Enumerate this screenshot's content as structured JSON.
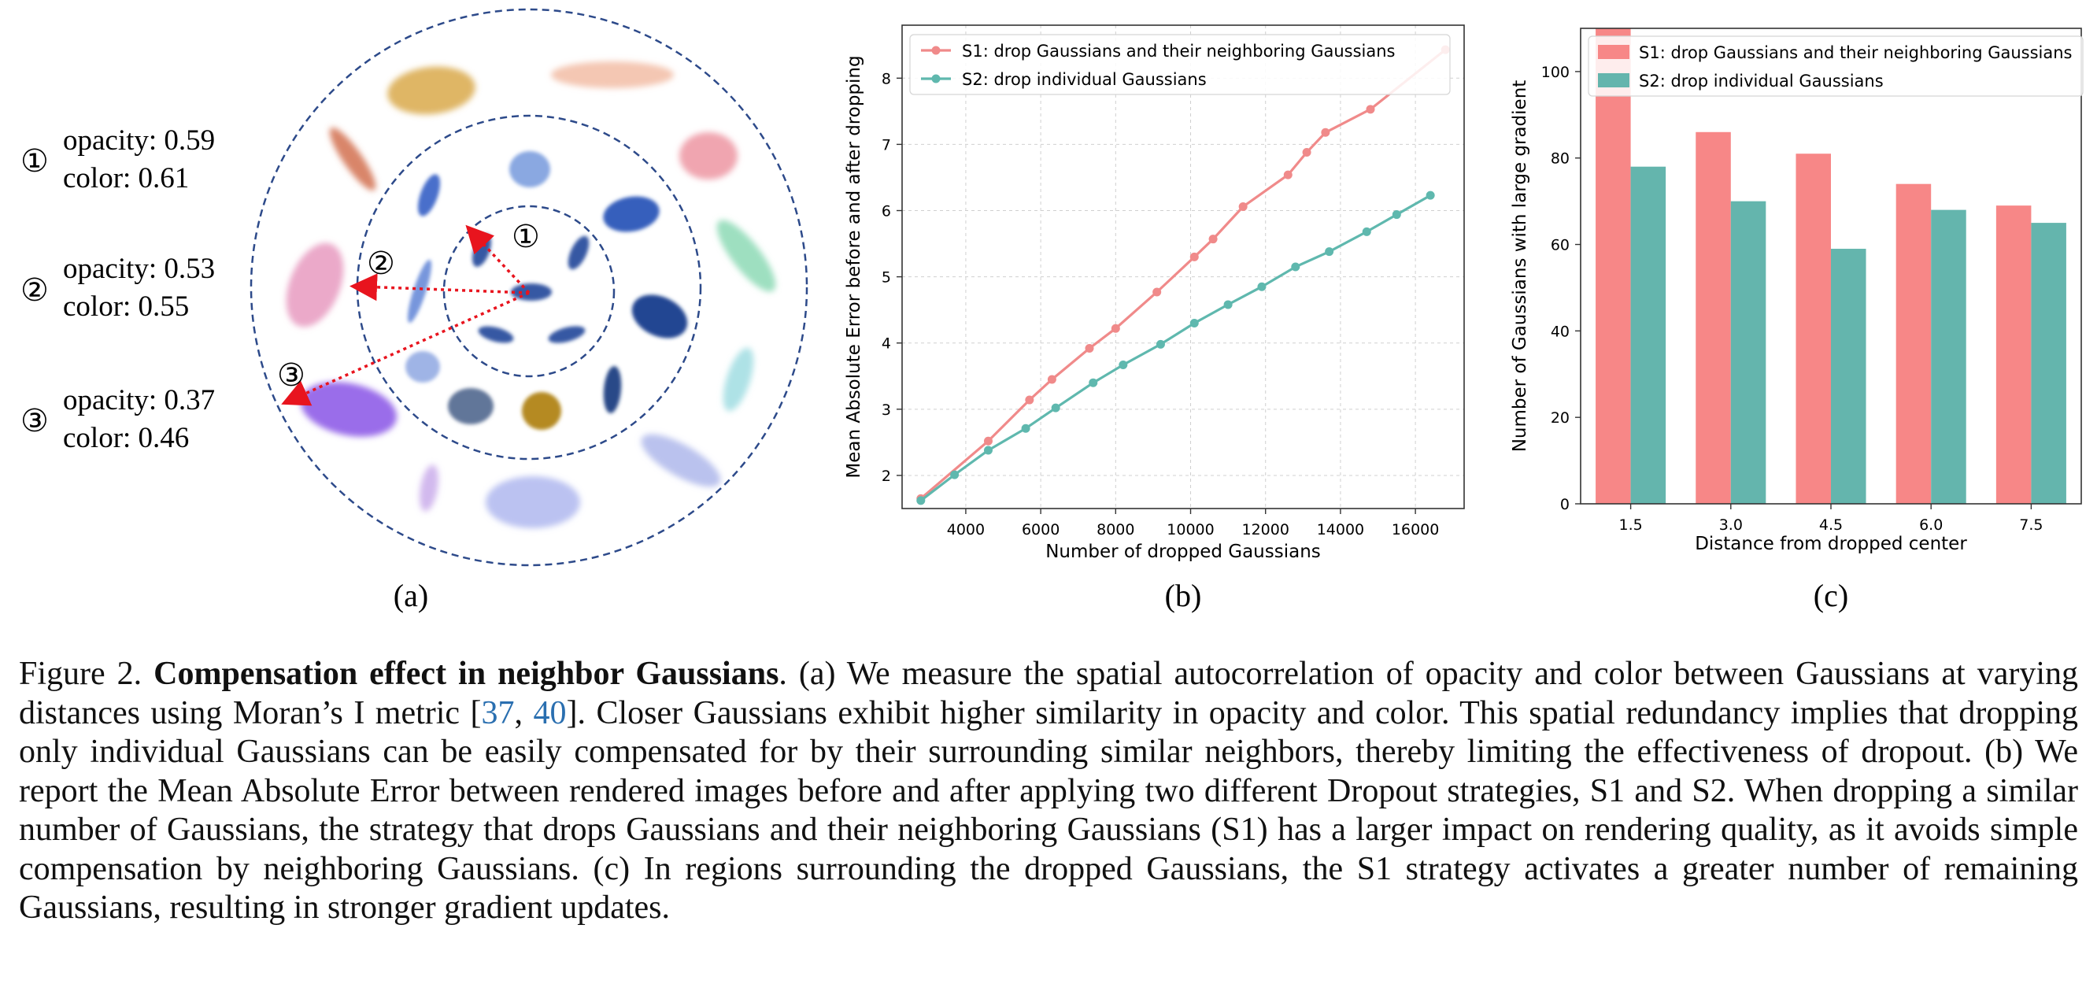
{
  "panel_a": {
    "label": "(a)",
    "annotations": [
      {
        "marker": "①",
        "opacity_text": "opacity: 0.59",
        "color_text": "color: 0.61"
      },
      {
        "marker": "②",
        "opacity_text": "opacity: 0.53",
        "color_text": "color: 0.55"
      },
      {
        "marker": "③",
        "opacity_text": "opacity: 0.37",
        "color_text": "color: 0.46"
      }
    ],
    "ring_markers": [
      "①",
      "②",
      "③"
    ]
  },
  "chart_data": [
    {
      "type": "line",
      "panel_label": "(b)",
      "xlabel": "Number of dropped Gaussians",
      "ylabel": "Mean Absolute Error before and after dropping",
      "xlim": [
        2300,
        17300
      ],
      "ylim": [
        1.5,
        8.8
      ],
      "xticks": [
        4000,
        6000,
        8000,
        10000,
        12000,
        14000,
        16000
      ],
      "yticks": [
        2,
        3,
        4,
        5,
        6,
        7,
        8
      ],
      "grid": true,
      "legend_position": "top-left",
      "series": [
        {
          "name": "S1: drop Gaussians and their neighboring Gaussians",
          "color": "#f08a8a",
          "x": [
            2800,
            4600,
            5700,
            6300,
            7300,
            8000,
            9100,
            10100,
            10600,
            11400,
            12600,
            13100,
            13600,
            14800,
            16800
          ],
          "y": [
            1.65,
            2.52,
            3.14,
            3.45,
            3.92,
            4.22,
            4.77,
            5.3,
            5.57,
            6.06,
            6.54,
            6.88,
            7.18,
            7.53,
            8.43
          ]
        },
        {
          "name": "S2: drop individual Gaussians",
          "color": "#5fb8ae",
          "x": [
            2800,
            3700,
            4600,
            5600,
            6400,
            7400,
            8200,
            9200,
            10100,
            11000,
            11900,
            12800,
            13700,
            14700,
            15500,
            16400
          ],
          "y": [
            1.62,
            2.01,
            2.38,
            2.71,
            3.02,
            3.4,
            3.67,
            3.98,
            4.3,
            4.58,
            4.85,
            5.15,
            5.38,
            5.68,
            5.94,
            6.23
          ]
        }
      ]
    },
    {
      "type": "bar",
      "panel_label": "(c)",
      "xlabel": "Distance from dropped center",
      "ylabel": "Number of Gaussians with large gradient",
      "categories": [
        "1.5",
        "3.0",
        "4.5",
        "6.0",
        "7.5"
      ],
      "ylim": [
        0,
        110
      ],
      "yticks": [
        0,
        20,
        40,
        60,
        80,
        100
      ],
      "grid": false,
      "legend_position": "top-left",
      "series": [
        {
          "name": "S1: drop Gaussians and their neighboring Gaussians",
          "color": "#f78787",
          "values": [
            110,
            86,
            81,
            74,
            69
          ]
        },
        {
          "name": "S2: drop individual Gaussians",
          "color": "#64b5ad",
          "values": [
            78,
            70,
            59,
            68,
            65
          ]
        }
      ]
    }
  ],
  "caption": {
    "fig": "Figure 2.",
    "title": "Compensation effect in neighbor Gaussians",
    "part1": ". (a) We measure the spatial autocorrelation of opacity and color between Gaussians at varying distances using Moran’s I metric [",
    "ref1": "37",
    "sep": ", ",
    "ref2": "40",
    "part2": "]. Closer Gaussians exhibit higher similarity in opacity and color. This spatial redundancy implies that dropping only individual Gaussians can be easily compensated for by their surrounding similar neighbors, thereby limiting the effectiveness of dropout. (b) We report the Mean Absolute Error between rendered images before and after applying two different Dropout strategies, S1 and S2. When dropping a similar number of Gaussians, the strategy that drops Gaussians and their neighboring Gaussians (S1) has a larger impact on rendering quality, as it avoids simple compensation by neighboring Gaussians. (c) In regions surrounding the dropped Gaussians, the S1 strategy activates a greater number of remaining Gaussians, resulting in stronger gradient updates."
  }
}
